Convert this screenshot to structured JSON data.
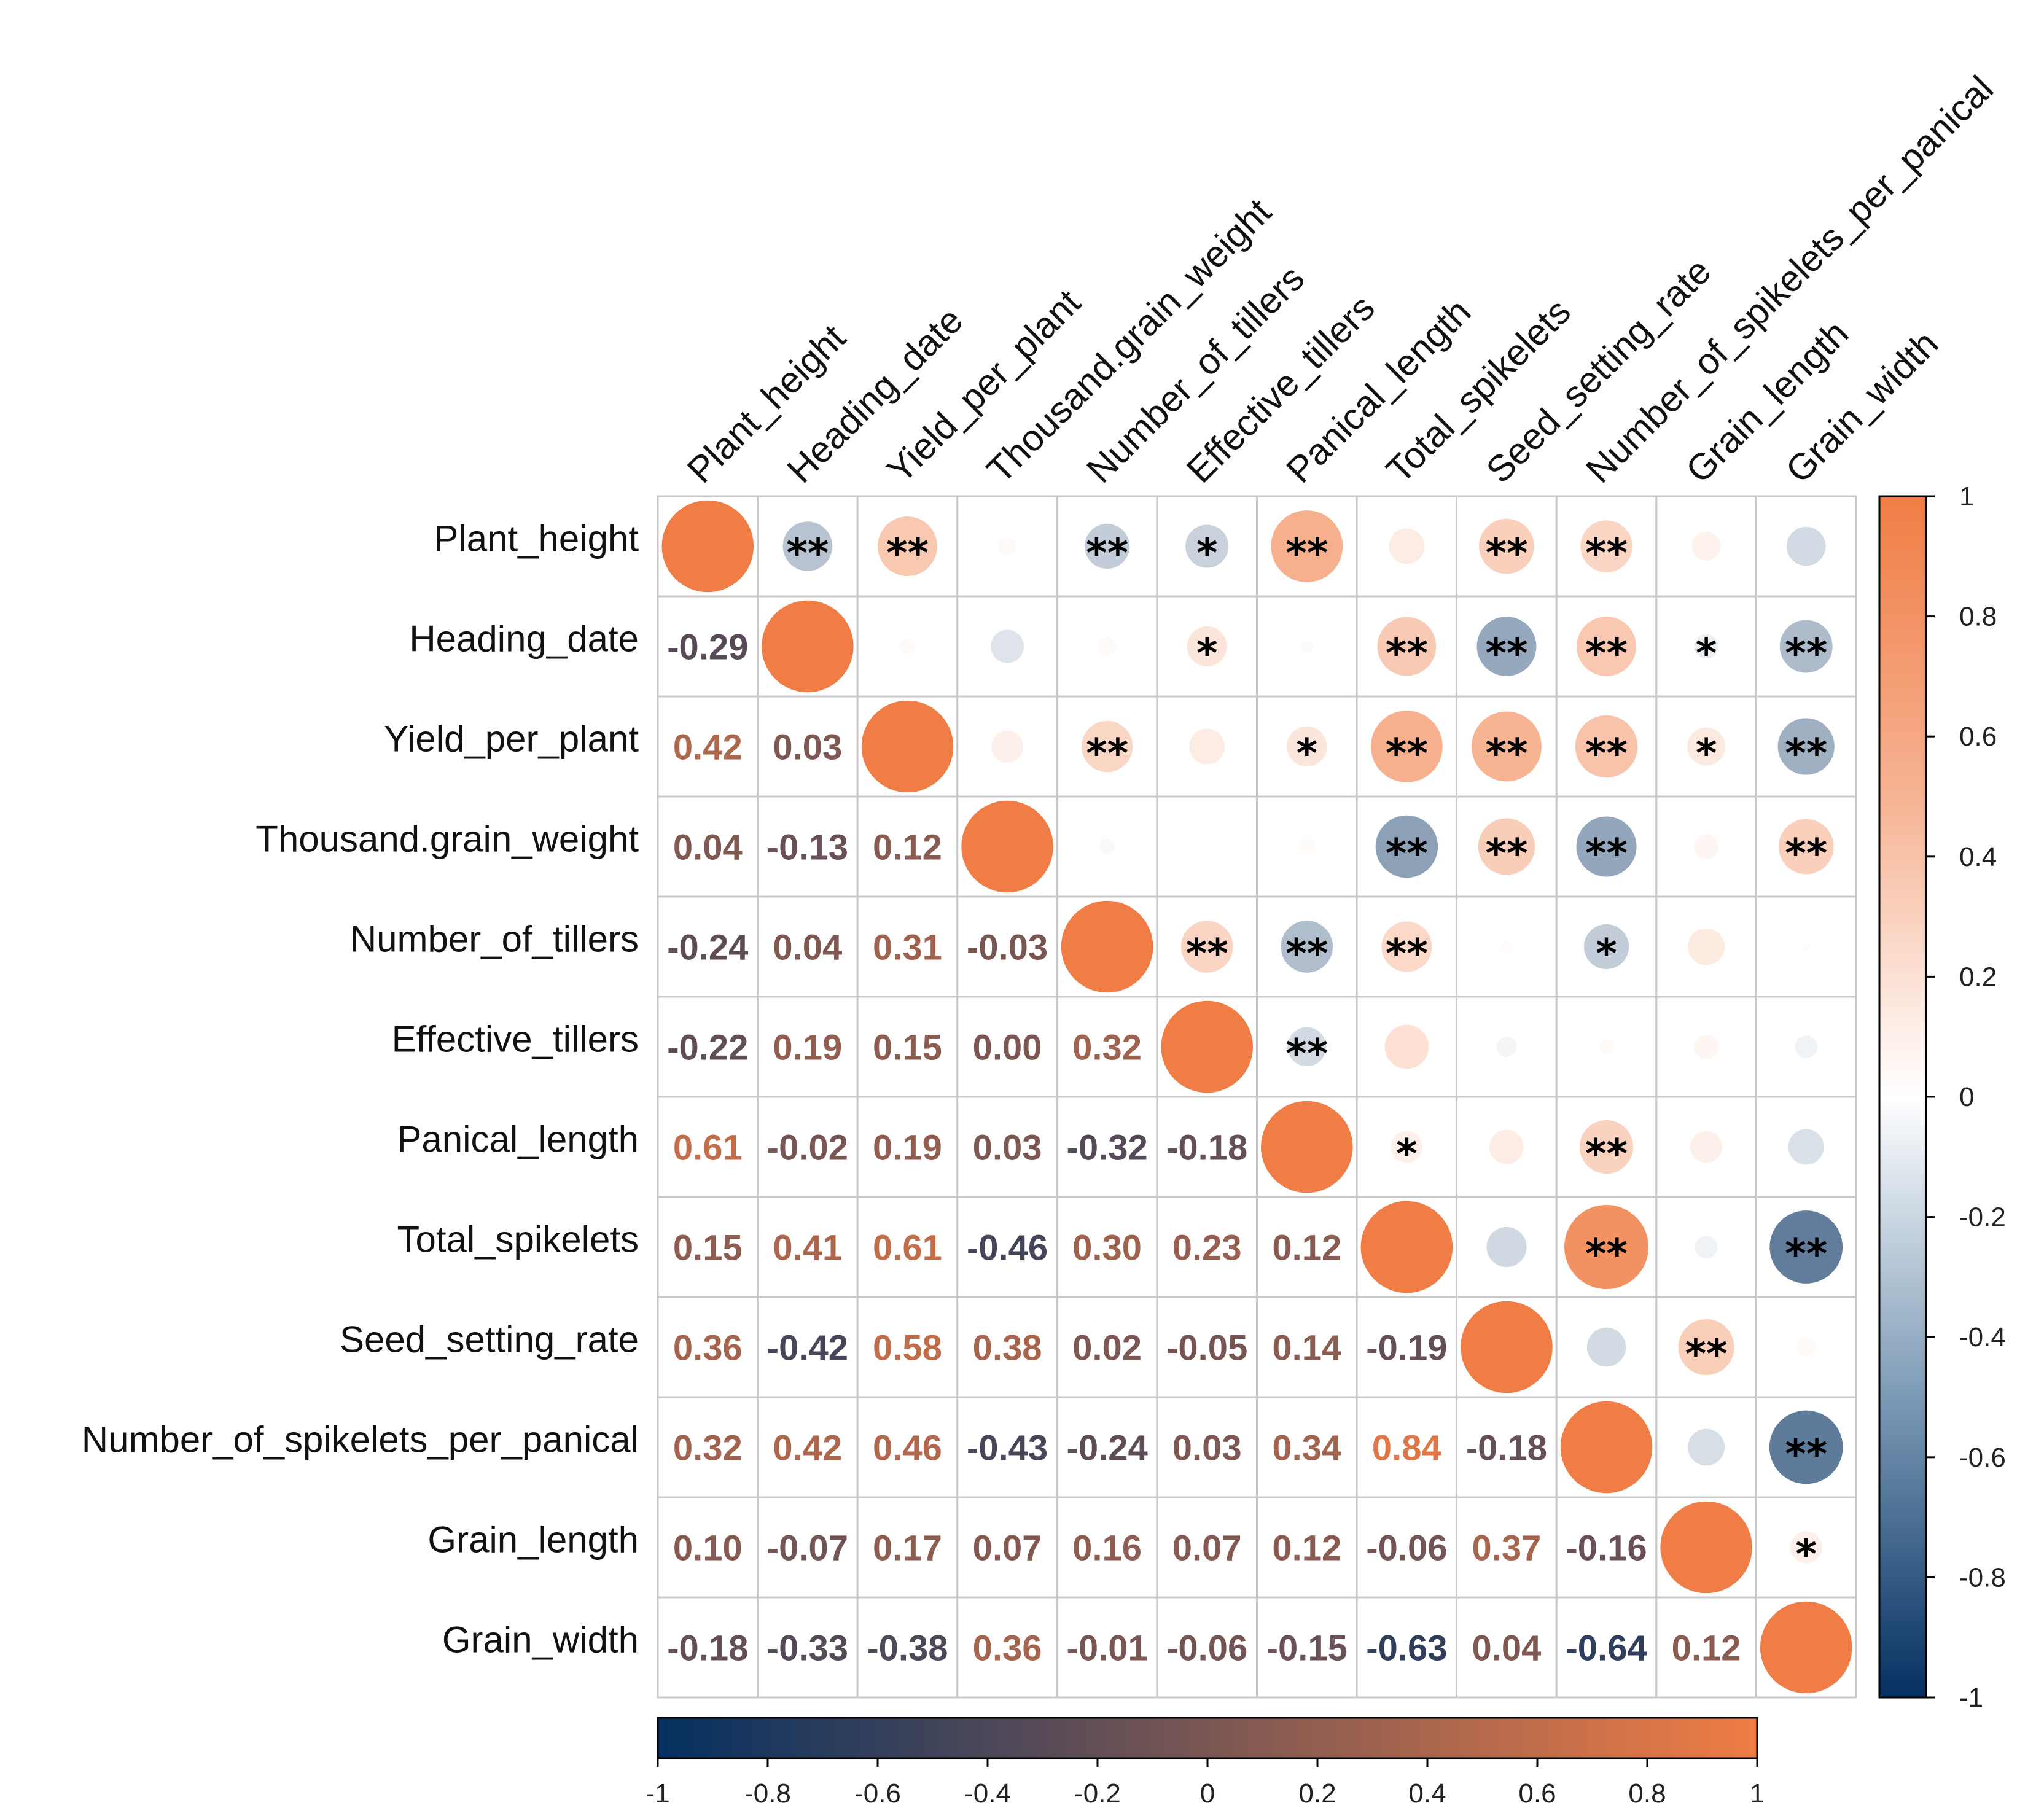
{
  "chart_data": {
    "type": "heatmap",
    "variables": [
      "Plant_height",
      "Heading_date",
      "Yield_per_plant",
      "Thousand.grain_weight",
      "Number_of_tillers",
      "Effective_tillers",
      "Panical_length",
      "Total_spikelets",
      "Seed_setting_rate",
      "Number_of_spikelets_per_panical",
      "Grain_length",
      "Grain_width"
    ],
    "lower_triangle_correlations": [
      [],
      [
        -0.29
      ],
      [
        0.42,
        0.03
      ],
      [
        0.04,
        -0.13,
        0.12
      ],
      [
        -0.24,
        0.04,
        0.31,
        -0.03
      ],
      [
        -0.22,
        0.19,
        0.15,
        0.0,
        0.32
      ],
      [
        0.61,
        -0.02,
        0.19,
        0.03,
        -0.32,
        -0.18
      ],
      [
        0.15,
        0.41,
        0.61,
        -0.46,
        0.3,
        0.23,
        0.12
      ],
      [
        0.36,
        -0.42,
        0.58,
        0.38,
        0.02,
        -0.05,
        0.14,
        -0.19
      ],
      [
        0.32,
        0.42,
        0.46,
        -0.43,
        -0.24,
        0.03,
        0.34,
        0.84,
        -0.18
      ],
      [
        0.1,
        -0.07,
        0.17,
        0.07,
        0.16,
        0.07,
        0.12,
        -0.06,
        0.37,
        -0.16
      ],
      [
        -0.18,
        -0.33,
        -0.38,
        0.36,
        -0.01,
        -0.06,
        -0.15,
        -0.63,
        0.04,
        -0.64,
        0.12
      ]
    ],
    "upper_triangle_significance": [
      [
        "**",
        "**",
        "",
        "**",
        "*",
        "**",
        "",
        "**",
        "**",
        "",
        ""
      ],
      [
        "",
        "",
        "",
        "*",
        "",
        "**",
        "**",
        "**",
        "*",
        "**"
      ],
      [
        "",
        "**",
        "",
        "*",
        "**",
        "**",
        "**",
        "*",
        "**"
      ],
      [
        "",
        "",
        "",
        "**",
        "**",
        "**",
        "",
        "**"
      ],
      [
        "**",
        "**",
        "**",
        "",
        "*",
        "",
        ""
      ],
      [
        "**",
        "",
        "",
        "",
        "",
        ""
      ],
      [
        "*",
        "",
        "**",
        "",
        ""
      ],
      [
        "",
        "**",
        "",
        "**"
      ],
      [
        "",
        "**",
        ""
      ],
      [
        "",
        "**"
      ],
      [
        "*"
      ],
      []
    ],
    "diagonal": 1,
    "upper_display": "circles",
    "lower_display": "numbers",
    "range": [
      -1,
      1
    ],
    "colors": {
      "negative": "#053061",
      "zero": "#ffffff",
      "positive": "#f07d45"
    },
    "colorbar_right_ticks": [
      "1",
      "0.8",
      "0.6",
      "0.4",
      "0.2",
      "0",
      "-0.2",
      "-0.4",
      "-0.6",
      "-0.8",
      "-1"
    ],
    "colorbar_bottom_ticks": [
      "-1",
      "-0.8",
      "-0.6",
      "-0.4",
      "-0.2",
      "0",
      "0.2",
      "0.4",
      "0.6",
      "0.8",
      "1"
    ]
  }
}
